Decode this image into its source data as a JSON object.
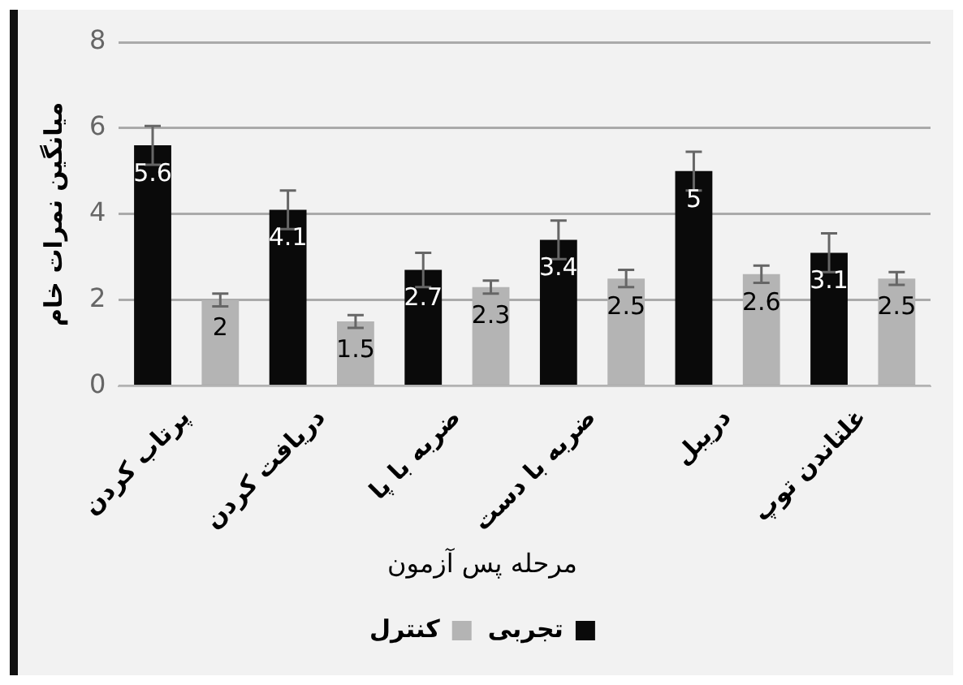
{
  "chart_data": {
    "type": "bar",
    "ylabel": "میانگین نمرات خام",
    "legend_title": "مرحله پس آزمون",
    "categories": [
      "پرتاب کردن",
      "دریافت کردن",
      "ضربه با پا",
      "ضربه با دست",
      "دریبل",
      "غلتاندن توپ"
    ],
    "series": [
      {
        "name": "تجربی",
        "color": "#0a0a0a",
        "values": [
          5.6,
          4.1,
          2.7,
          3.4,
          5,
          3.1
        ],
        "errors": [
          0.45,
          0.45,
          0.4,
          0.45,
          0.45,
          0.45
        ]
      },
      {
        "name": "کنترل",
        "color": "#b4b4b4",
        "values": [
          2,
          1.5,
          2.3,
          2.5,
          2.6,
          2.5
        ],
        "errors": [
          0.15,
          0.15,
          0.15,
          0.2,
          0.2,
          0.15
        ]
      }
    ],
    "ylim": [
      0,
      8
    ],
    "yticks": [
      0,
      2,
      4,
      6,
      8
    ],
    "grid": "y",
    "legend": "bottom",
    "data_labels": true
  }
}
